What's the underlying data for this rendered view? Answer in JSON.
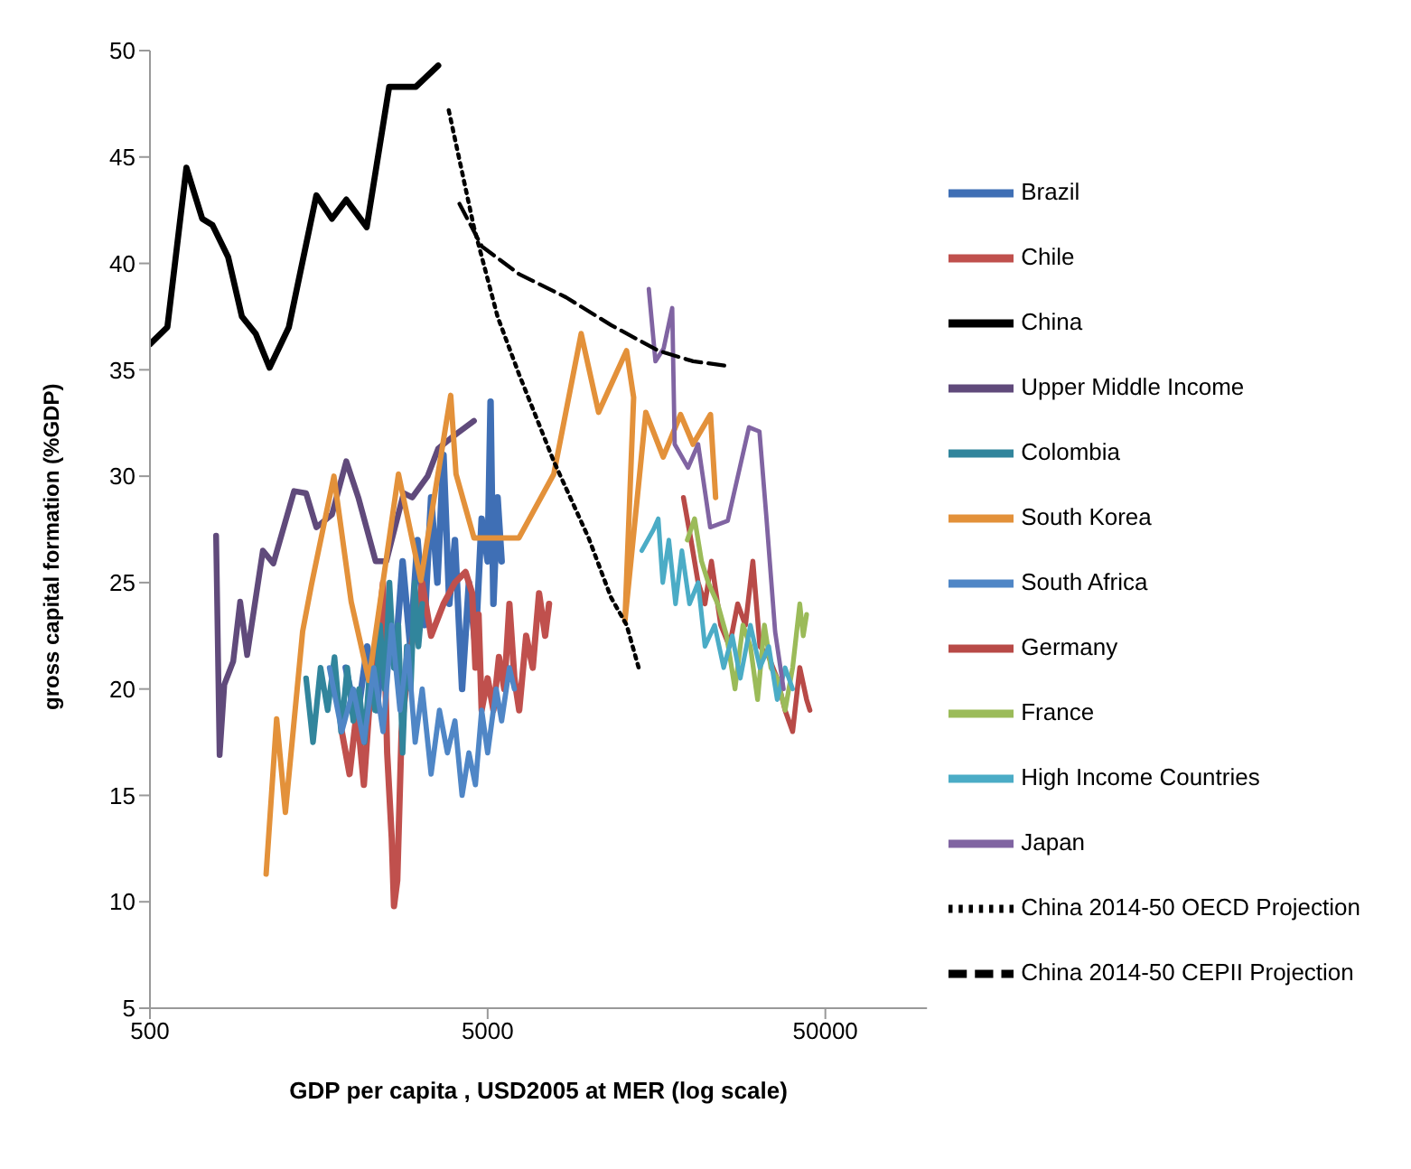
{
  "chart_data": {
    "type": "line",
    "xlabel": "GDP per capita , USD2005 at MER (log scale)",
    "ylabel": "gross capital formation (%GDP)",
    "xlim": [
      500,
      100000
    ],
    "xticks": [
      500,
      5000,
      50000
    ],
    "ylim": [
      5,
      50
    ],
    "yticks": [
      5,
      10,
      15,
      20,
      25,
      30,
      35,
      40,
      45,
      50
    ],
    "log": "x",
    "grid": false,
    "legend": "right",
    "series": [
      {
        "name": "Brazil",
        "color": "#3f6fb5",
        "x": [
          1900,
          2050,
          2200,
          2350,
          2500,
          2650,
          2800,
          2950,
          3100,
          3250,
          3400,
          3550,
          3700,
          3850,
          4000,
          4200,
          4400,
          4600,
          4800,
          5000,
          5100,
          5200,
          5350,
          5500
        ],
        "values": [
          21,
          18.5,
          22,
          19,
          24,
          21,
          26,
          22,
          27,
          23,
          29,
          25,
          31,
          24,
          27,
          20,
          25,
          22,
          28,
          26,
          33.5,
          24,
          29,
          26
        ]
      },
      {
        "name": "Chile",
        "color": "#c0504d",
        "x": [
          1850,
          1950,
          2050,
          2150,
          2250,
          2350,
          2450,
          2520,
          2600,
          2640,
          2700,
          2780,
          2900,
          3050,
          3200,
          3400,
          3700,
          4000,
          4300,
          4500,
          4600,
          4700,
          4800,
          5000,
          5200,
          5400,
          5600,
          5800,
          6000,
          6200,
          6500,
          6800,
          7100,
          7400,
          7600
        ],
        "values": [
          18,
          16,
          19,
          15.5,
          20,
          22,
          25,
          17,
          13,
          9.8,
          11,
          18,
          21,
          23,
          25,
          22.5,
          24,
          25,
          25.5,
          24.5,
          21,
          23.5,
          19,
          20.5,
          19,
          21.5,
          20,
          24,
          20.5,
          19,
          22.5,
          21,
          24.5,
          22.5,
          24
        ]
      },
      {
        "name": "China",
        "color": "#000000",
        "x": [
          500,
          563,
          641,
          714,
          766,
          852,
          936,
          1028,
          1130,
          1289,
          1555,
          1730,
          1907,
          2192,
          2555,
          3066,
          3570
        ],
        "values": [
          36.2,
          37,
          44.5,
          42.1,
          41.8,
          40.3,
          37.5,
          36.7,
          35.1,
          37,
          43.2,
          42.1,
          43,
          41.7,
          48.3,
          48.3,
          49.3
        ]
      },
      {
        "name": "Upper Middle Income",
        "color": "#604a7b",
        "x": [
          785,
          804,
          830,
          882,
          925,
          970,
          1080,
          1160,
          1336,
          1450,
          1555,
          1730,
          1907,
          2070,
          2330,
          2505,
          2820,
          2990,
          3320,
          3570,
          3975,
          4554
        ],
        "values": [
          27.2,
          16.9,
          20.2,
          21.3,
          24.1,
          21.6,
          26.5,
          25.9,
          29.3,
          29.2,
          27.6,
          28.2,
          30.7,
          29,
          26,
          26,
          29.2,
          29,
          30,
          31.3,
          31.9,
          32.6
        ]
      },
      {
        "name": "Colombia",
        "color": "#31859c",
        "x": [
          1450,
          1520,
          1600,
          1680,
          1760,
          1840,
          1920,
          2000,
          2080,
          2160,
          2240,
          2320,
          2400,
          2480,
          2560,
          2640,
          2720,
          2800,
          2880,
          2960,
          3040,
          3120,
          3200
        ],
        "values": [
          20.5,
          17.5,
          21,
          19,
          21.5,
          18,
          21,
          18.5,
          20,
          17.5,
          21,
          19,
          23,
          20,
          25,
          21,
          23,
          17,
          22,
          20,
          25,
          22,
          24
        ]
      },
      {
        "name": "South Korea",
        "color": "#e3913a",
        "x": [
          1104,
          1186,
          1259,
          1416,
          1504,
          1753,
          1972,
          2225,
          2722,
          3170,
          3887,
          4030,
          4554,
          6190,
          7849,
          9460,
          10650,
          11990,
          12890,
          13530,
          12750,
          14700,
          16550,
          18630,
          20288,
          22845,
          23660
        ],
        "values": [
          11.3,
          18.6,
          14.2,
          22.7,
          24.9,
          30,
          24.1,
          20.4,
          30.1,
          25.1,
          33.8,
          30.1,
          27.1,
          27.1,
          30.1,
          36.7,
          33,
          34.8,
          35.9,
          33.7,
          23.2,
          33,
          30.9,
          32.9,
          31.5,
          32.9,
          29
        ]
      },
      {
        "name": "South Africa",
        "color": "#4f86c6",
        "x": [
          1700,
          1850,
          2000,
          2150,
          2300,
          2450,
          2600,
          2750,
          2900,
          3050,
          3200,
          3400,
          3600,
          3800,
          4000,
          4200,
          4400,
          4600,
          4800,
          5000,
          5300,
          5500,
          5800,
          6000
        ],
        "values": [
          21,
          18,
          20,
          17.5,
          21,
          18,
          23,
          19,
          22,
          17.5,
          20,
          16,
          19,
          17,
          18.5,
          15,
          17,
          15.5,
          19,
          17,
          20,
          18.5,
          21,
          20
        ]
      },
      {
        "name": "Germany",
        "color": "#b84a47",
        "x": [
          19000,
          20000,
          21000,
          22000,
          23000,
          24500,
          26000,
          27500,
          29000,
          30500,
          32000,
          34000,
          36000,
          38000,
          40000,
          42000,
          44000,
          45000
        ],
        "values": [
          29,
          27,
          25,
          24,
          26,
          23,
          22,
          24,
          23,
          26,
          22,
          21.5,
          20.5,
          19,
          18,
          21,
          19.5,
          19
        ]
      },
      {
        "name": "France",
        "color": "#9bbb59",
        "x": [
          19500,
          20500,
          21500,
          22500,
          24000,
          25500,
          27000,
          28500,
          30000,
          31500,
          33000,
          34500,
          36000,
          38000,
          40000,
          42000,
          43000,
          44000
        ],
        "values": [
          27,
          28,
          26,
          25,
          24,
          22.5,
          20,
          23,
          22,
          19.5,
          23,
          21,
          20.5,
          19,
          21,
          24,
          22.5,
          23.5
        ]
      },
      {
        "name": "High Income Countries",
        "color": "#4bacc6",
        "x": [
          14300,
          15500,
          16000,
          16500,
          17200,
          18000,
          18800,
          19800,
          21000,
          22000,
          23500,
          25000,
          26500,
          28000,
          30000,
          32000,
          34000,
          36000,
          38000,
          40000
        ],
        "values": [
          26.5,
          27.5,
          28,
          25,
          27,
          24,
          26.5,
          24,
          25,
          22,
          23,
          21,
          22.5,
          20.5,
          23,
          21,
          22,
          19.5,
          21,
          20
        ]
      },
      {
        "name": "Japan",
        "color": "#8064a2",
        "x": [
          15000,
          15700,
          16600,
          17600,
          17900,
          19600,
          21000,
          22800,
          25700,
          29700,
          31900,
          33400,
          35500,
          37600
        ],
        "values": [
          38.8,
          35.4,
          36,
          37.9,
          31.5,
          30.4,
          31.5,
          27.6,
          27.9,
          32.3,
          32.1,
          28.2,
          22.7,
          20
        ]
      },
      {
        "name": "China 2014-50 OECD Projection",
        "color": "#000000",
        "line_style": "dotted",
        "x": [
          3835,
          4554,
          5349,
          6190,
          7849,
          9952,
          11600,
          12900,
          14000
        ],
        "values": [
          47.2,
          41.7,
          37.5,
          34.8,
          30.7,
          27.1,
          24.3,
          23,
          21
        ]
      },
      {
        "name": "China 2014-50 CEPII Projection",
        "color": "#000000",
        "line_style": "dashed",
        "x": [
          4125,
          4806,
          6190,
          8545,
          11600,
          16000,
          20288,
          25100
        ],
        "values": [
          42.8,
          40.8,
          39.5,
          38.4,
          37.1,
          35.9,
          35.4,
          35.2
        ]
      }
    ]
  }
}
